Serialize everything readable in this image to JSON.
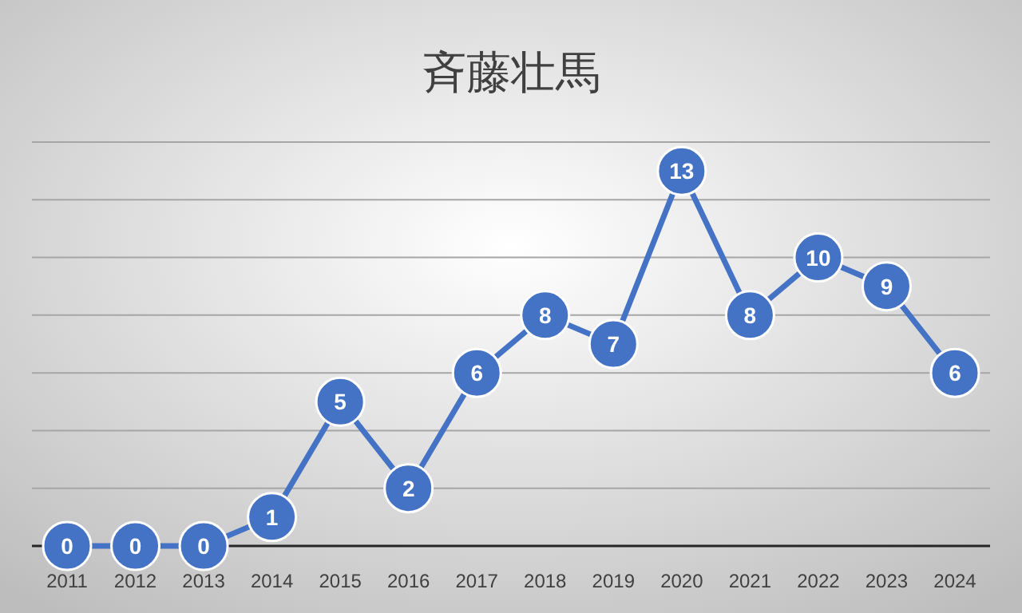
{
  "chart_data": {
    "type": "line",
    "title": "斉藤壮馬",
    "categories": [
      "2011",
      "2012",
      "2013",
      "2014",
      "2015",
      "2016",
      "2017",
      "2018",
      "2019",
      "2020",
      "2021",
      "2022",
      "2023",
      "2024"
    ],
    "values": [
      0,
      0,
      0,
      1,
      5,
      2,
      6,
      8,
      7,
      13,
      8,
      10,
      9,
      6
    ],
    "color": "#4472c4",
    "ylim": [
      0,
      14
    ],
    "yticks": [
      {
        "value": 0,
        "label": null
      },
      {
        "value": 2,
        "label": null
      },
      {
        "value": 4,
        "label": null
      },
      {
        "value": 6,
        "label": null
      },
      {
        "value": 8,
        "label": null
      },
      {
        "value": 10,
        "label": null
      },
      {
        "value": 12,
        "label": null
      },
      {
        "value": 14,
        "label": null
      }
    ],
    "grid": "y",
    "marker": "circle",
    "line_style": "solid",
    "data_labels": true
  }
}
